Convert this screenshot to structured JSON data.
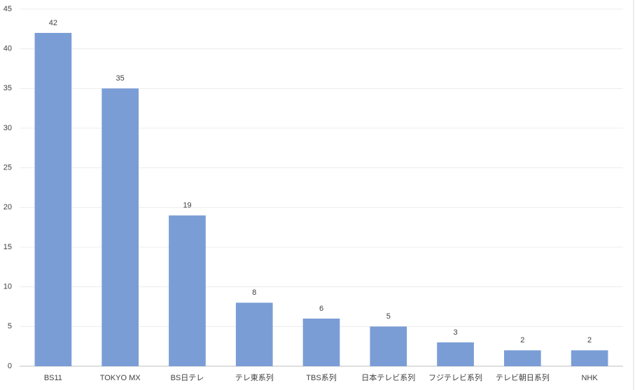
{
  "chart_data": {
    "type": "bar",
    "categories": [
      "BS11",
      "TOKYO MX",
      "BS日テレ",
      "テレ東系列",
      "TBS系列",
      "日本テレビ系列",
      "フジテレビ系列",
      "テレビ朝日系列",
      "NHK"
    ],
    "values": [
      42,
      35,
      19,
      8,
      6,
      5,
      3,
      2,
      2
    ],
    "color": "#7a9dd6",
    "ylim": [
      0,
      45
    ],
    "yticks": [
      0,
      5,
      10,
      15,
      20,
      25,
      30,
      35,
      40,
      45
    ],
    "grid": true
  }
}
